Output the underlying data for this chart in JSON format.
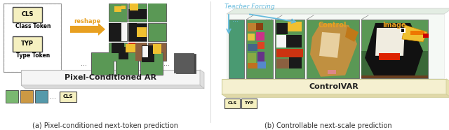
{
  "fig_width": 6.4,
  "fig_height": 1.86,
  "dpi": 100,
  "bg_color": "#ffffff",
  "caption_a": "(a) Pixel-conditioned next-token prediction",
  "caption_b": "(b) Controllable next-scale prediction",
  "caption_fontsize": 7.0,
  "cls_box_color": "#f5f0c0",
  "cls_box_edge": "#444444",
  "typ_box_color": "#f5f0c0",
  "typ_box_edge": "#444444",
  "class_token_label": "Class Token",
  "type_token_label": "Type Token",
  "cls_label": "CLS",
  "typ_label": "TYP",
  "reshape_arrow_color": "#e8a020",
  "reshape_label": "reshape",
  "bar_label_left": "Pixel-Conditioned AR",
  "bar_label_right": "ControlVAR",
  "teacher_forcing_label": "Teacher Forcing",
  "teacher_forcing_color": "#66bbdd",
  "control_label": "Control",
  "control_label_color": "#e8a020",
  "image_label": "Image",
  "image_label_color": "#e8a020",
  "dashed_box_color": "#999999",
  "green_tile": "#5a9855",
  "dark_tile": "#222222",
  "yellow_tile": "#f0c030",
  "red_tile": "#cc3311",
  "brown_tile": "#8b4513"
}
